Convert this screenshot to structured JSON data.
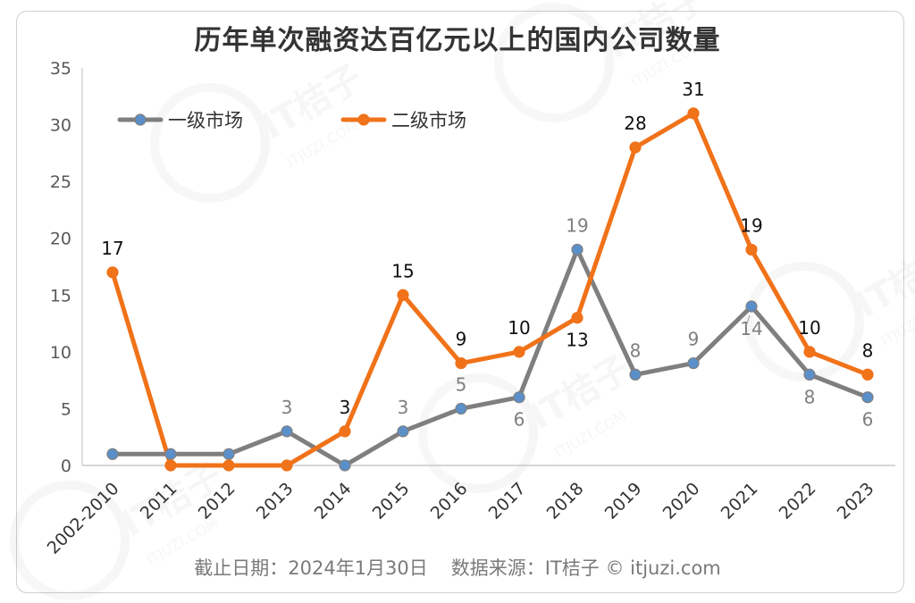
{
  "chart_data": {
    "type": "line",
    "title": "历年单次融资达百亿元以上的国内公司数量",
    "categories": [
      "2002-2010",
      "2011",
      "2012",
      "2013",
      "2014",
      "2015",
      "2016",
      "2017",
      "2018",
      "2019",
      "2020",
      "2021",
      "2022",
      "2023"
    ],
    "series": [
      {
        "name": "一级市场",
        "color": "#7f7f7f",
        "marker": "#5b8fc9",
        "values": [
          1,
          1,
          1,
          3,
          0,
          3,
          5,
          6,
          19,
          8,
          9,
          14,
          8,
          6
        ],
        "labels": {
          "3": "3",
          "5": "3",
          "6": "5",
          "7": "6",
          "8": "19",
          "9": "8",
          "10": "9",
          "11": "14",
          "12": "8",
          "13": "6"
        }
      },
      {
        "name": "二级市场",
        "color": "#f07219",
        "marker": "#f07219",
        "values": [
          17,
          0,
          0,
          0,
          3,
          15,
          9,
          10,
          13,
          28,
          31,
          19,
          10,
          8
        ],
        "labels": {
          "0": "17",
          "4": "3",
          "5": "15",
          "6": "9",
          "7": "10",
          "8": "13",
          "9": "28",
          "10": "31",
          "11": "19",
          "12": "10",
          "13": "8"
        }
      }
    ],
    "ylim": [
      0,
      35
    ],
    "yticks": [
      0,
      5,
      10,
      15,
      20,
      25,
      30,
      35
    ],
    "legend_position": "top-left",
    "xlabel": "",
    "ylabel": ""
  },
  "footer": {
    "cutoff": "截止日期：2024年1月30日",
    "source": "数据来源：IT桔子 © itjuzi.com"
  },
  "watermark": {
    "brand": "IT桔子",
    "site": "ITJUZI.COM"
  }
}
